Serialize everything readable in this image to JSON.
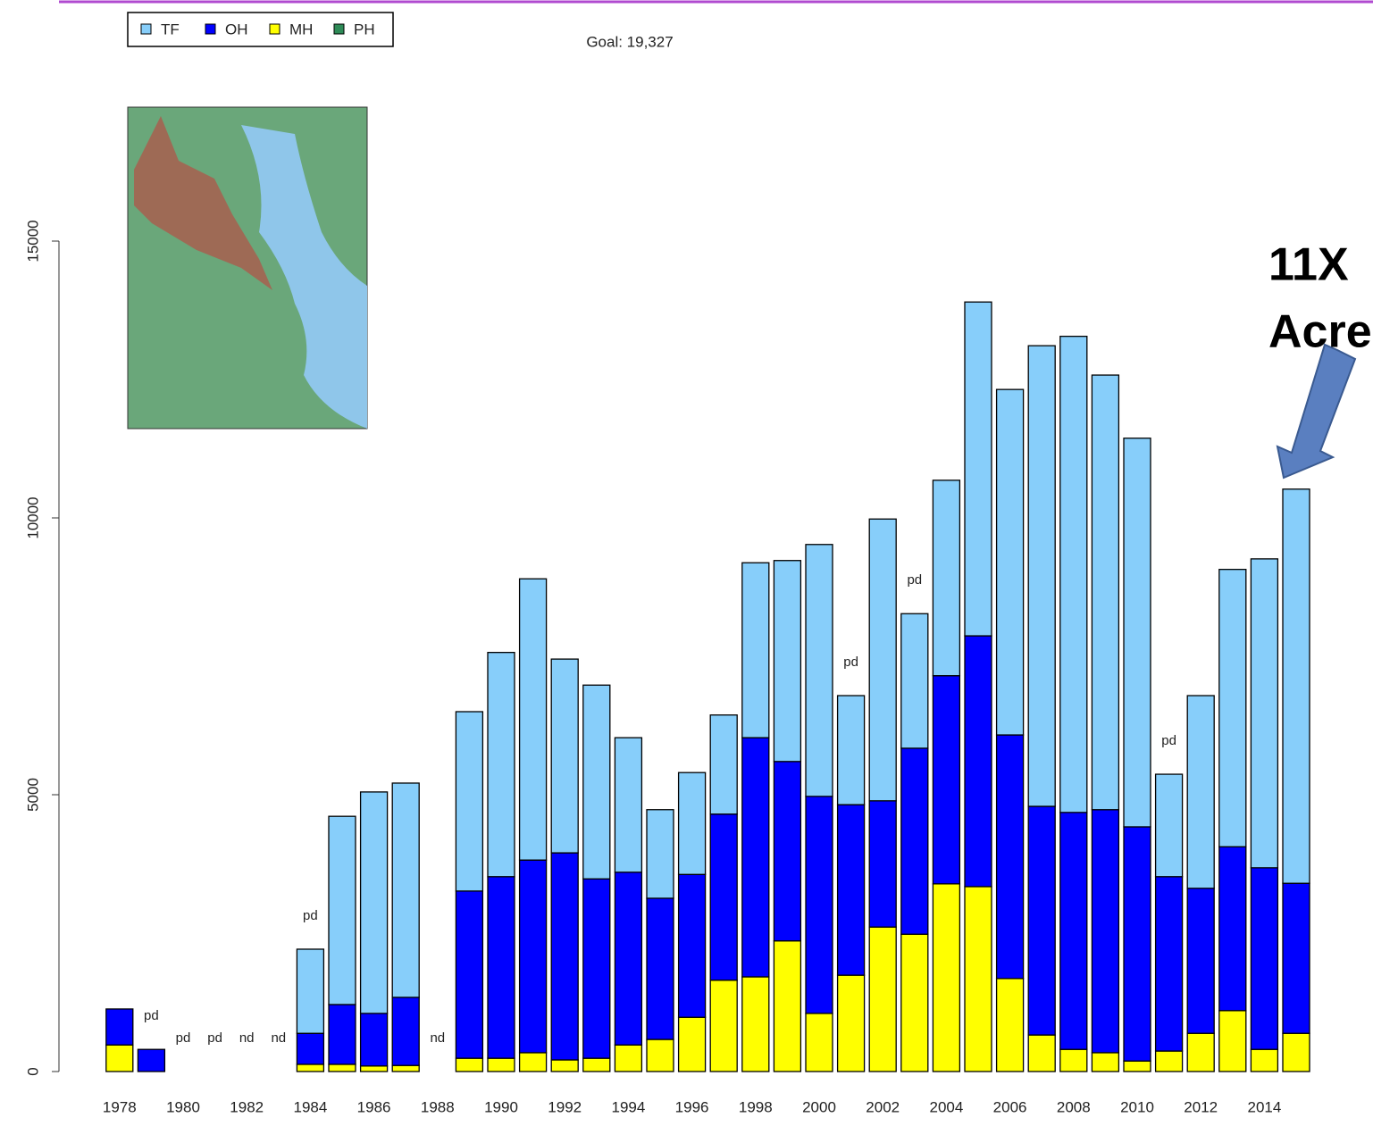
{
  "chart_data": {
    "type": "stacked_bar",
    "goal_label": "Goal: 19,327",
    "callout": [
      "11X",
      "Acre"
    ],
    "categories": [
      "1978",
      null,
      "1980",
      null,
      "1982",
      null,
      "1984",
      null,
      "1986",
      null,
      "1988",
      null,
      "1990",
      null,
      "1992",
      null,
      "1994",
      null,
      "1996",
      null,
      "1998",
      null,
      "2000",
      null,
      "2002",
      null,
      "2004",
      null,
      "2006",
      null,
      "2008",
      null,
      "2010",
      null,
      "2012",
      null,
      "2014",
      null
    ],
    "series": [
      {
        "name": "TF",
        "color": "#87cefa",
        "values": [
          0,
          0,
          0,
          0,
          0,
          0,
          1520,
          3400,
          4000,
          3870,
          0,
          3240,
          4050,
          5080,
          3500,
          3500,
          2430,
          1600,
          1840,
          1790,
          3160,
          3630,
          4550,
          1970,
          5090,
          2430,
          3530,
          6030,
          6240,
          8320,
          8600,
          7850,
          7020,
          1850,
          3480,
          5010,
          5580,
          7120
        ]
      },
      {
        "name": "OH",
        "color": "#0000ff",
        "values": [
          650,
          400,
          0,
          0,
          0,
          0,
          560,
          1080,
          950,
          1230,
          0,
          3020,
          3280,
          3480,
          3740,
          3240,
          3120,
          2550,
          2580,
          3000,
          4320,
          3240,
          3920,
          3080,
          2280,
          3360,
          3760,
          4530,
          4400,
          4130,
          4280,
          4390,
          4230,
          3150,
          2620,
          2960,
          3280,
          2710
        ]
      },
      {
        "name": "MH",
        "color": "#ffff00",
        "values": [
          480,
          0,
          0,
          0,
          0,
          0,
          130,
          130,
          100,
          110,
          0,
          240,
          240,
          340,
          210,
          240,
          480,
          580,
          980,
          1650,
          1710,
          2360,
          1050,
          1740,
          2610,
          2480,
          3390,
          3340,
          1680,
          660,
          400,
          340,
          190,
          370,
          690,
          1100,
          400,
          690
        ]
      },
      {
        "name": "PH",
        "color": "#2e8b57",
        "values": [
          0,
          0,
          0,
          0,
          0,
          0,
          0,
          0,
          0,
          0,
          0,
          0,
          0,
          0,
          0,
          0,
          0,
          0,
          0,
          0,
          0,
          0,
          0,
          0,
          0,
          0,
          0,
          0,
          0,
          0,
          0,
          0,
          0,
          0,
          0,
          0,
          0,
          0
        ]
      }
    ],
    "bar_notes": [
      null,
      "pd",
      "pd",
      "pd",
      "nd",
      "nd",
      "pd",
      null,
      null,
      null,
      "nd",
      null,
      null,
      null,
      null,
      null,
      null,
      null,
      null,
      null,
      null,
      null,
      null,
      "pd",
      null,
      "pd",
      null,
      null,
      null,
      null,
      null,
      null,
      null,
      "pd",
      null,
      null,
      null,
      null
    ],
    "ylim": [
      0,
      15000
    ],
    "yticks": [
      0,
      5000,
      10000,
      15000
    ]
  }
}
